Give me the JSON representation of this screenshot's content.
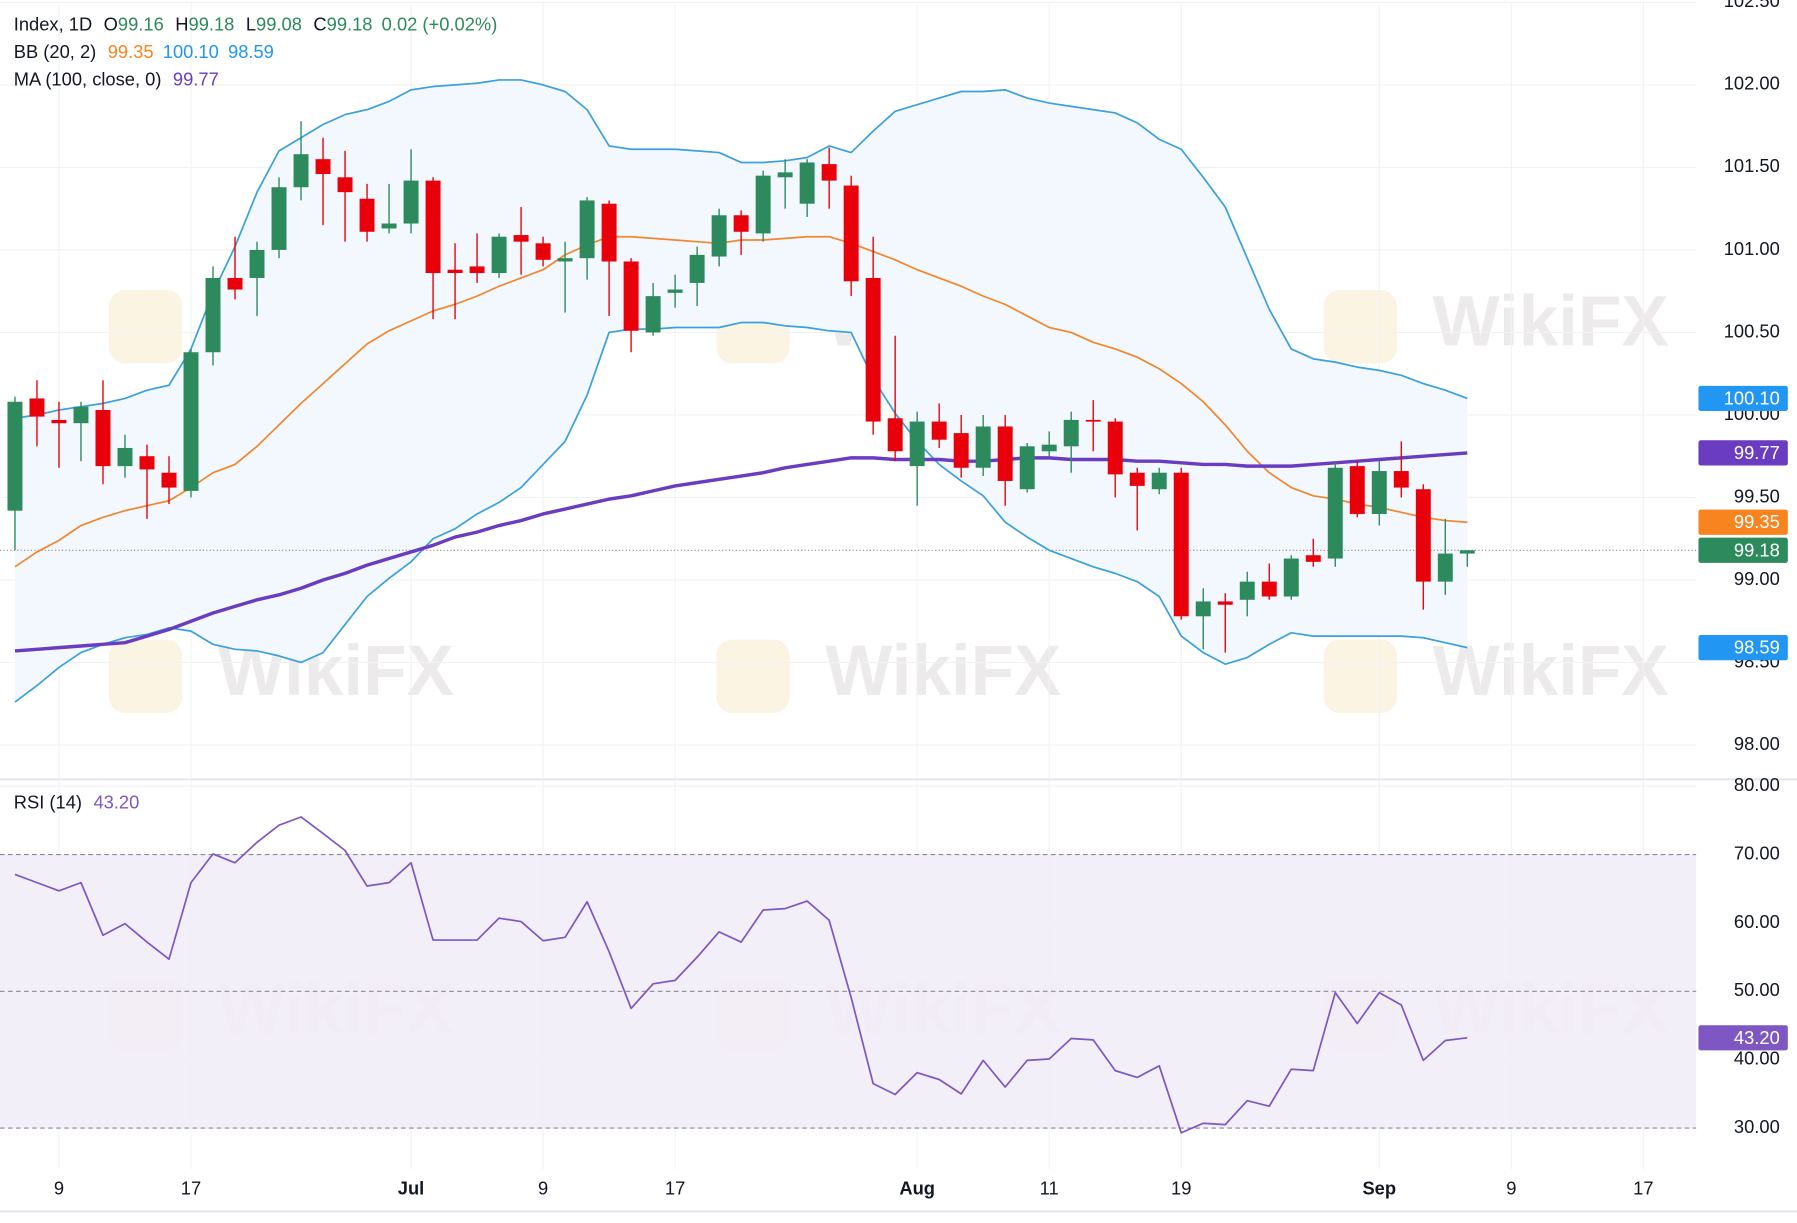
{
  "chart_data": [
    {
      "type": "candlestick",
      "watermark": "WikiFX",
      "legend": {
        "symbol": "Index, 1D",
        "labels": [
          "O",
          "H",
          "L",
          "C"
        ],
        "change": "0.02 (+0.02%)"
      },
      "xlim": [
        -0.68,
        76.4
      ],
      "ylim": [
        97.8,
        102.5
      ],
      "yticks": [
        {
          "value": 98,
          "label": "98.00"
        },
        {
          "value": 98.5,
          "label": "98.50"
        },
        {
          "value": 99,
          "label": "99.00"
        },
        {
          "value": 99.5,
          "label": "99.50"
        },
        {
          "value": 100,
          "label": "100.00"
        },
        {
          "value": 100.5,
          "label": "100.50"
        },
        {
          "value": 101,
          "label": "101.00"
        },
        {
          "value": 101.5,
          "label": "101.50"
        },
        {
          "value": 102,
          "label": "102.00"
        },
        {
          "value": 102.5,
          "label": "102.50"
        }
      ],
      "grid": true,
      "up_color": "#2d8a5c",
      "down_color": "#e8000b",
      "open": [
        99.42,
        100.1,
        99.97,
        99.95,
        100.03,
        99.69,
        99.75,
        99.65,
        99.54,
        100.38,
        100.83,
        100.83,
        101.0,
        101.38,
        101.55,
        101.44,
        101.31,
        101.13,
        101.16,
        101.42,
        100.88,
        100.9,
        100.86,
        101.09,
        101.04,
        100.93,
        100.95,
        101.28,
        100.93,
        100.5,
        100.74,
        100.8,
        100.96,
        101.21,
        101.1,
        101.44,
        101.28,
        101.52,
        101.39,
        100.83,
        99.98,
        99.69,
        99.96,
        99.89,
        99.68,
        99.93,
        99.55,
        99.78,
        99.81,
        99.97,
        99.96,
        99.65,
        99.55,
        99.65,
        98.78,
        98.87,
        98.88,
        98.99,
        98.9,
        99.15,
        99.13,
        99.69,
        99.4,
        99.66,
        99.55,
        98.99,
        99.16
      ],
      "high": [
        100.11,
        100.21,
        100.08,
        100.08,
        100.21,
        99.88,
        99.82,
        99.75,
        100.4,
        100.9,
        101.08,
        101.05,
        101.44,
        101.78,
        101.68,
        101.6,
        101.4,
        101.4,
        101.61,
        101.44,
        101.04,
        101.1,
        101.1,
        101.26,
        101.08,
        101.05,
        101.32,
        101.3,
        100.95,
        100.8,
        100.85,
        101.02,
        101.25,
        101.24,
        101.48,
        101.55,
        101.55,
        101.62,
        101.45,
        101.08,
        100.48,
        100.02,
        100.07,
        100.0,
        100.0,
        100.0,
        99.83,
        99.9,
        100.02,
        100.09,
        99.98,
        99.68,
        99.68,
        99.68,
        98.95,
        98.92,
        99.05,
        99.1,
        99.15,
        99.25,
        99.72,
        99.72,
        99.72,
        99.84,
        99.58,
        99.37,
        99.18
      ],
      "low": [
        99.18,
        99.81,
        99.68,
        99.72,
        99.58,
        99.62,
        99.37,
        99.46,
        99.5,
        100.3,
        100.7,
        100.6,
        100.95,
        101.3,
        101.15,
        101.05,
        101.05,
        101.1,
        101.1,
        100.58,
        100.58,
        100.8,
        100.83,
        100.85,
        100.9,
        100.62,
        100.82,
        100.6,
        100.38,
        100.48,
        100.65,
        100.66,
        100.9,
        100.97,
        101.05,
        101.25,
        101.2,
        101.25,
        100.72,
        99.88,
        99.72,
        99.45,
        99.8,
        99.62,
        99.63,
        99.45,
        99.53,
        99.75,
        99.65,
        99.78,
        99.5,
        99.3,
        99.52,
        98.76,
        98.58,
        98.56,
        98.78,
        98.88,
        98.88,
        99.08,
        99.08,
        99.38,
        99.33,
        99.5,
        98.82,
        98.91,
        99.08
      ],
      "close": [
        100.08,
        99.99,
        99.95,
        100.05,
        99.69,
        99.8,
        99.67,
        99.56,
        100.38,
        100.83,
        100.76,
        101.0,
        101.38,
        101.58,
        101.46,
        101.35,
        101.11,
        101.16,
        101.42,
        100.86,
        100.86,
        100.86,
        101.08,
        101.05,
        100.94,
        100.95,
        101.3,
        100.93,
        100.51,
        100.72,
        100.76,
        100.97,
        101.21,
        101.11,
        101.45,
        101.47,
        101.53,
        101.42,
        100.81,
        99.96,
        99.78,
        99.96,
        99.85,
        99.68,
        99.93,
        99.6,
        99.81,
        99.82,
        99.97,
        99.96,
        99.64,
        99.57,
        99.65,
        98.78,
        98.87,
        98.85,
        98.99,
        98.9,
        99.13,
        99.11,
        99.68,
        99.4,
        99.66,
        99.56,
        98.99,
        99.16,
        99.18
      ],
      "indicators": [
        {
          "name": "BB (20, 2)",
          "fill": "#f2f8fe",
          "lines": [
            {
              "color": "#f0862e",
              "badge_color": "#f7841e",
              "last_label": "99.35",
              "width": 1.5,
              "values": [
                99.08,
                99.17,
                99.24,
                99.33,
                99.38,
                99.42,
                99.45,
                99.48,
                99.56,
                99.65,
                99.7,
                99.81,
                99.94,
                100.07,
                100.19,
                100.31,
                100.43,
                100.51,
                100.57,
                100.63,
                100.67,
                100.72,
                100.78,
                100.83,
                100.88,
                100.97,
                101.03,
                101.08,
                101.08,
                101.07,
                101.06,
                101.05,
                101.04,
                101.06,
                101.06,
                101.07,
                101.08,
                101.08,
                101.04,
                100.99,
                100.94,
                100.88,
                100.83,
                100.78,
                100.72,
                100.67,
                100.6,
                100.53,
                100.5,
                100.44,
                100.4,
                100.35,
                100.28,
                100.19,
                100.08,
                99.94,
                99.78,
                99.65,
                99.56,
                99.51,
                99.49,
                99.46,
                99.44,
                99.41,
                99.38,
                99.36,
                99.35
              ]
            },
            {
              "color": "#3ba0dc",
              "badge_color": "#2196f3",
              "last_label": "100.10",
              "width": 1.5,
              "values": [
                99.98,
                100.0,
                100.03,
                100.05,
                100.07,
                100.1,
                100.15,
                100.18,
                100.4,
                100.74,
                101.02,
                101.35,
                101.6,
                101.68,
                101.76,
                101.82,
                101.85,
                101.9,
                101.97,
                101.99,
                102.0,
                102.01,
                102.03,
                102.03,
                102.0,
                101.96,
                101.85,
                101.63,
                101.61,
                101.61,
                101.61,
                101.6,
                101.59,
                101.53,
                101.53,
                101.54,
                101.56,
                101.63,
                101.59,
                101.72,
                101.84,
                101.88,
                101.92,
                101.96,
                101.96,
                101.97,
                101.92,
                101.89,
                101.87,
                101.85,
                101.83,
                101.77,
                101.67,
                101.61,
                101.44,
                101.26,
                100.95,
                100.64,
                100.4,
                100.34,
                100.32,
                100.29,
                100.27,
                100.24,
                100.19,
                100.15,
                100.1
              ]
            },
            {
              "color": "#3ba0dc",
              "badge_color": "#2196f3",
              "last_label": "98.59",
              "width": 1.5,
              "values": [
                98.26,
                98.36,
                98.47,
                98.56,
                98.61,
                98.65,
                98.67,
                98.71,
                98.69,
                98.61,
                98.58,
                98.57,
                98.54,
                98.5,
                98.56,
                98.73,
                98.9,
                99.01,
                99.11,
                99.25,
                99.31,
                99.4,
                99.47,
                99.56,
                99.7,
                99.84,
                100.12,
                100.5,
                100.52,
                100.52,
                100.53,
                100.53,
                100.53,
                100.56,
                100.56,
                100.54,
                100.53,
                100.51,
                100.5,
                100.22,
                100.01,
                99.84,
                99.7,
                99.6,
                99.51,
                99.35,
                99.26,
                99.18,
                99.13,
                99.08,
                99.04,
                98.99,
                98.9,
                98.66,
                98.56,
                98.49,
                98.53,
                98.61,
                98.68,
                98.66,
                98.66,
                98.66,
                98.66,
                98.66,
                98.65,
                98.62,
                98.59
              ]
            }
          ]
        },
        {
          "name": "MA (100, close, 0)",
          "lines": [
            {
              "color": "#6a3cc0",
              "badge_color": "#6a3cc0",
              "last_label": "99.77",
              "width": 3,
              "values": [
                98.57,
                98.58,
                98.59,
                98.6,
                98.61,
                98.62,
                98.66,
                98.7,
                98.75,
                98.8,
                98.84,
                98.88,
                98.91,
                98.95,
                99.0,
                99.04,
                99.09,
                99.13,
                99.17,
                99.21,
                99.26,
                99.29,
                99.33,
                99.36,
                99.4,
                99.43,
                99.46,
                99.49,
                99.51,
                99.54,
                99.57,
                99.59,
                99.61,
                99.63,
                99.65,
                99.68,
                99.7,
                99.72,
                99.74,
                99.74,
                99.73,
                99.73,
                99.73,
                99.72,
                99.72,
                99.73,
                99.74,
                99.74,
                99.73,
                99.73,
                99.73,
                99.72,
                99.72,
                99.71,
                99.7,
                99.7,
                99.69,
                99.69,
                99.69,
                99.7,
                99.71,
                99.72,
                99.73,
                99.74,
                99.75,
                99.76,
                99.77
              ]
            }
          ]
        }
      ]
    },
    {
      "type": "line",
      "title": "RSI (14)",
      "xlim": [
        -0.68,
        76.4
      ],
      "xticks": [
        {
          "value": 2,
          "label": "9"
        },
        {
          "value": 8,
          "label": "17"
        },
        {
          "value": 18,
          "label": "Jul"
        },
        {
          "value": 24,
          "label": "9"
        },
        {
          "value": 30,
          "label": "17"
        },
        {
          "value": 41,
          "label": "Aug"
        },
        {
          "value": 47,
          "label": "11"
        },
        {
          "value": 53,
          "label": "19"
        },
        {
          "value": 62,
          "label": "Sep"
        },
        {
          "value": 68,
          "label": "9"
        },
        {
          "value": 74,
          "label": "17"
        }
      ],
      "ylim": [
        24,
        81
      ],
      "yticks": [
        {
          "value": 30,
          "label": "30.00"
        },
        {
          "value": 40,
          "label": "40.00"
        },
        {
          "value": 50,
          "label": "50.00"
        },
        {
          "value": 60,
          "label": "60.00"
        },
        {
          "value": 70,
          "label": "70.00"
        },
        {
          "value": 80,
          "label": "80.00"
        }
      ],
      "grid": true,
      "band": [
        30,
        70
      ],
      "band_color": "#f1ecf8",
      "levels": [
        70,
        50,
        30
      ],
      "series": [
        {
          "name": "RSI (14)",
          "color": "#7e57c2",
          "last_label": "43.20",
          "values": [
            67.1,
            65.9,
            64.7,
            65.9,
            58.2,
            59.9,
            57.2,
            54.7,
            65.9,
            70.1,
            68.8,
            71.8,
            74.3,
            75.5,
            73.1,
            70.6,
            65.4,
            65.9,
            68.8,
            57.5,
            57.5,
            57.5,
            60.7,
            60.2,
            57.4,
            57.9,
            63.1,
            55.8,
            47.5,
            51.1,
            51.6,
            55.0,
            58.7,
            57.2,
            61.9,
            62.1,
            63.2,
            60.4,
            49.1,
            36.5,
            34.9,
            38.1,
            37.1,
            35.0,
            39.9,
            36.0,
            39.9,
            40.1,
            43.1,
            42.9,
            38.4,
            37.4,
            39.1,
            29.3,
            30.7,
            30.5,
            34.0,
            33.2,
            38.6,
            38.4,
            49.8,
            45.3,
            49.8,
            48.0,
            39.9,
            42.8,
            43.2
          ]
        }
      ]
    }
  ]
}
